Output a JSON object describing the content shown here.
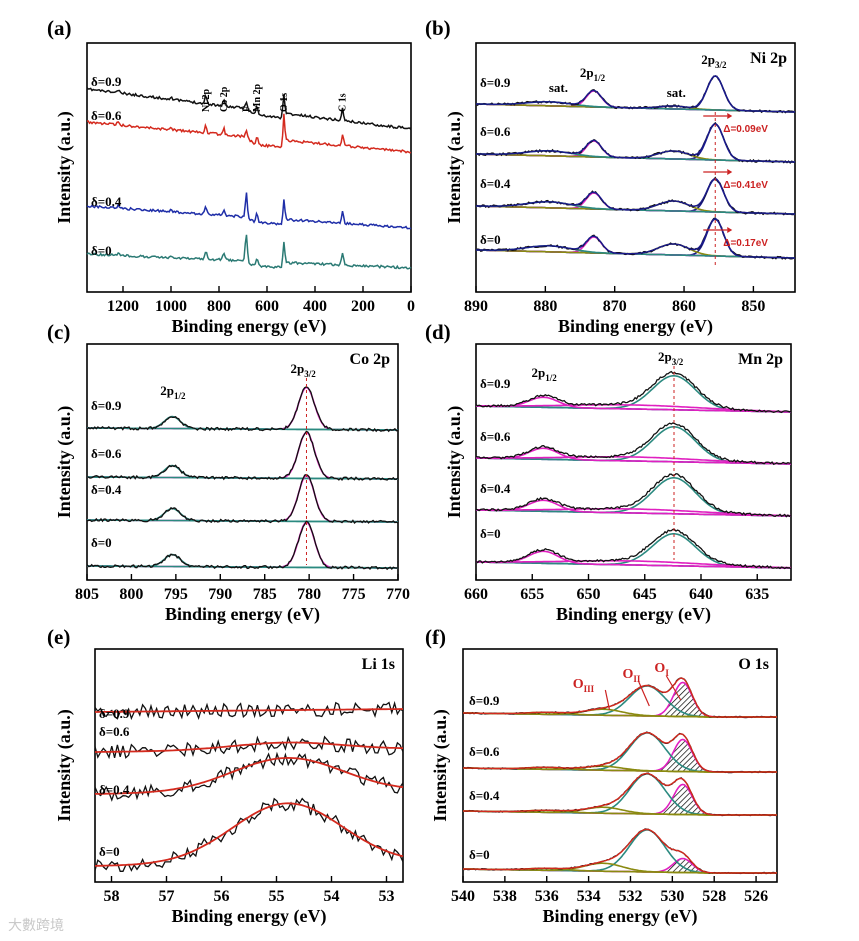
{
  "figure": {
    "watermark": "大數跨境"
  },
  "chart_data": [
    {
      "id": "a",
      "type": "line",
      "panel_label": "(a)",
      "title": "",
      "xlabel": "Binding energy (eV)",
      "ylabel": "Intensity (a.u.)",
      "xlim": [
        1350,
        0
      ],
      "xticks": [
        1200,
        1000,
        800,
        600,
        400,
        200,
        0
      ],
      "series": [
        {
          "name": "δ=0.9",
          "color": "#111111",
          "level": 3
        },
        {
          "name": "δ=0.6",
          "color": "#d42a1e",
          "level": 2
        },
        {
          "name": "δ=0.4",
          "color": "#1f2ea8",
          "level": 1
        },
        {
          "name": "δ=0",
          "color": "#2b7a74",
          "level": 0
        }
      ],
      "annotations": [
        {
          "text": "Ni 2p",
          "x": 855
        },
        {
          "text": "Co 2p",
          "x": 780
        },
        {
          "text": "F",
          "x": 686
        },
        {
          "text": "Mn 2p",
          "x": 642
        },
        {
          "text": "O 1s",
          "x": 530
        },
        {
          "text": "C 1s",
          "x": 285
        }
      ]
    },
    {
      "id": "b",
      "type": "line",
      "panel_label": "(b)",
      "title": "Ni 2p",
      "xlabel": "Binding energy (eV)",
      "ylabel": "Intensity (a.u.)",
      "xlim": [
        890,
        844
      ],
      "xticks": [
        890,
        880,
        870,
        860,
        850
      ],
      "series": [
        {
          "name": "δ=0.9",
          "level": 3
        },
        {
          "name": "δ=0.6",
          "level": 2
        },
        {
          "name": "δ=0.4",
          "level": 1
        },
        {
          "name": "δ=0",
          "level": 0
        }
      ],
      "peaks": [
        {
          "label": "2p3/2",
          "x": 855.5,
          "color": "#1a1a8c"
        },
        {
          "label": "2p1/2",
          "x": 873.0,
          "color": "#e020c0"
        },
        {
          "label": "sat.",
          "x": 861.5,
          "color": "#8a8a10"
        },
        {
          "label": "sat.",
          "x": 880.0,
          "color": "#2b8a80"
        }
      ],
      "annotations": [
        {
          "text": "sat.",
          "x": 879.5,
          "series": "δ=0.9"
        },
        {
          "text": "sat.",
          "x": 862.5,
          "series": "δ=0.9"
        },
        {
          "text": "Δ=0.09eV",
          "series": "δ=0.6"
        },
        {
          "text": "Δ=0.41eV",
          "series": "δ=0.4"
        },
        {
          "text": "Δ=0.17eV",
          "series": "δ=0"
        }
      ]
    },
    {
      "id": "c",
      "type": "line",
      "panel_label": "(c)",
      "title": "Co 2p",
      "xlabel": "Binding energy (eV)",
      "ylabel": "Intensity (a.u.)",
      "xlim": [
        805,
        770
      ],
      "xticks": [
        805,
        800,
        795,
        790,
        785,
        780,
        775,
        770
      ],
      "series": [
        {
          "name": "δ=0.9",
          "level": 3
        },
        {
          "name": "δ=0.6",
          "level": 2
        },
        {
          "name": "δ=0.4",
          "level": 1
        },
        {
          "name": "δ=0",
          "level": 0
        }
      ],
      "peaks": [
        {
          "label": "2p3/2",
          "x": 780.3,
          "color": "#e020c0"
        },
        {
          "label": "2p1/2",
          "x": 795.4,
          "color": "#2b8a80"
        }
      ]
    },
    {
      "id": "d",
      "type": "line",
      "panel_label": "(d)",
      "title": "Mn 2p",
      "xlabel": "Binding energy (eV)",
      "ylabel": "Intensity (a.u.)",
      "xlim": [
        660,
        632
      ],
      "xticks": [
        660,
        655,
        650,
        645,
        640,
        635
      ],
      "series": [
        {
          "name": "δ=0.9",
          "level": 3
        },
        {
          "name": "δ=0.6",
          "level": 2
        },
        {
          "name": "δ=0.4",
          "level": 1
        },
        {
          "name": "δ=0",
          "level": 0
        }
      ],
      "peaks": [
        {
          "label": "2p3/2",
          "x": 642.4,
          "color": "#2b8a80"
        },
        {
          "label": "2p1/2",
          "x": 654.0,
          "color": "#e020c0"
        }
      ]
    },
    {
      "id": "e",
      "type": "line",
      "panel_label": "(e)",
      "title": "Li 1s",
      "xlabel": "Binding energy (eV)",
      "ylabel": "Intensity (a.u.)",
      "xlim": [
        58.3,
        52.7
      ],
      "xticks": [
        58,
        57,
        56,
        55,
        54,
        53
      ],
      "series": [
        {
          "name": "δ=0.9",
          "level": 3,
          "fit_peak": 0
        },
        {
          "name": "δ=0.6",
          "level": 2,
          "fit_peak": 0.2
        },
        {
          "name": "δ=0.4",
          "level": 1,
          "fit_peak": 0.9
        },
        {
          "name": "δ=0",
          "level": 0,
          "fit_peak": 1.6
        }
      ],
      "peaks": [
        {
          "label": "Li 1s",
          "x": 54.8,
          "color": "#d42a1e"
        }
      ]
    },
    {
      "id": "f",
      "type": "line",
      "panel_label": "(f)",
      "title": "O 1s",
      "xlabel": "Binding energy (eV)",
      "ylabel": "Intensity (a.u.)",
      "xlim": [
        540,
        525
      ],
      "xticks": [
        540,
        538,
        536,
        534,
        532,
        530,
        528,
        526
      ],
      "series": [
        {
          "name": "δ=0.9",
          "level": 3
        },
        {
          "name": "δ=0.6",
          "level": 2
        },
        {
          "name": "δ=0.4",
          "level": 1
        },
        {
          "name": "δ=0",
          "level": 0
        }
      ],
      "peaks": [
        {
          "label": "OI",
          "x": 529.5,
          "color": "#e020c0"
        },
        {
          "label": "OII",
          "x": 531.2,
          "color": "#2b8a80"
        },
        {
          "label": "OIII",
          "x": 533.3,
          "color": "#8a8a10"
        }
      ]
    }
  ]
}
